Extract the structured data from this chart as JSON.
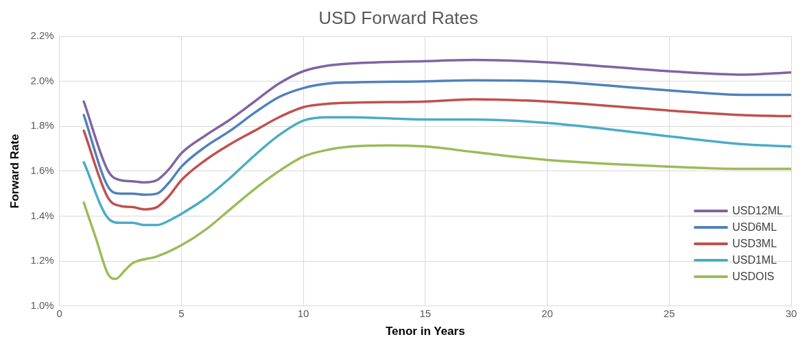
{
  "chart_data": {
    "type": "line",
    "title": "USD Forward Rates",
    "xlabel": "Tenor in Years",
    "ylabel": "Forward Rate",
    "xlim": [
      0,
      30
    ],
    "xticks": [
      0,
      5,
      10,
      15,
      20,
      25,
      30
    ],
    "ylim": [
      1.0,
      2.2
    ],
    "yticks": [
      {
        "value": 1.0,
        "label": "1.0%"
      },
      {
        "value": 1.2,
        "label": "1.2%"
      },
      {
        "value": 1.4,
        "label": "1.4%"
      },
      {
        "value": 1.6,
        "label": "1.6%"
      },
      {
        "value": 1.8,
        "label": "1.8%"
      },
      {
        "value": 2.0,
        "label": "2.0%"
      },
      {
        "value": 2.2,
        "label": "2.2%"
      }
    ],
    "grid": true,
    "legend": "bottom right",
    "marker": "none",
    "line_style": "solid",
    "series": [
      {
        "name": "USD12ML",
        "color": "#8064a2",
        "x": [
          1,
          2,
          2.5,
          3,
          3.5,
          4,
          4.5,
          5,
          6,
          7,
          8,
          9,
          10,
          11,
          12,
          15,
          17,
          20,
          25,
          28,
          30
        ],
        "values": [
          1.91,
          1.6,
          1.56,
          1.555,
          1.55,
          1.56,
          1.61,
          1.68,
          1.76,
          1.83,
          1.91,
          1.99,
          2.045,
          2.07,
          2.08,
          2.09,
          2.095,
          2.085,
          2.045,
          2.03,
          2.04
        ]
      },
      {
        "name": "USD6ML",
        "color": "#4f81bd",
        "x": [
          1,
          2,
          2.5,
          3,
          3.5,
          4,
          4.5,
          5,
          6,
          7,
          8,
          9,
          10,
          11,
          12,
          15,
          17,
          20,
          25,
          28,
          30
        ],
        "values": [
          1.85,
          1.53,
          1.5,
          1.5,
          1.495,
          1.5,
          1.55,
          1.62,
          1.71,
          1.78,
          1.86,
          1.93,
          1.97,
          1.99,
          1.995,
          2.0,
          2.005,
          2.0,
          1.96,
          1.94,
          1.94
        ]
      },
      {
        "name": "USD3ML",
        "color": "#c0504d",
        "x": [
          1,
          2,
          2.5,
          3,
          3.5,
          4,
          4.5,
          5,
          6,
          7,
          8,
          9,
          10,
          11,
          12,
          15,
          17,
          20,
          25,
          28,
          30
        ],
        "values": [
          1.78,
          1.48,
          1.445,
          1.44,
          1.43,
          1.44,
          1.49,
          1.56,
          1.65,
          1.72,
          1.78,
          1.84,
          1.885,
          1.9,
          1.905,
          1.91,
          1.92,
          1.91,
          1.87,
          1.85,
          1.845
        ]
      },
      {
        "name": "USD1ML",
        "color": "#4bacc6",
        "x": [
          1,
          2,
          2.5,
          3,
          3.5,
          4,
          4.5,
          5,
          6,
          7,
          8,
          9,
          10,
          11,
          12,
          15,
          17,
          20,
          25,
          28,
          30
        ],
        "values": [
          1.64,
          1.39,
          1.37,
          1.37,
          1.36,
          1.36,
          1.38,
          1.41,
          1.48,
          1.57,
          1.67,
          1.76,
          1.825,
          1.84,
          1.84,
          1.83,
          1.83,
          1.815,
          1.755,
          1.72,
          1.71
        ]
      },
      {
        "name": "USDOIS",
        "color": "#9bbb59",
        "x": [
          1,
          1.5,
          2,
          2.3,
          2.7,
          3,
          4,
          5,
          6,
          7,
          8,
          9,
          10,
          11,
          12,
          13.5,
          15,
          17,
          20,
          25,
          28,
          30
        ],
        "values": [
          1.46,
          1.3,
          1.14,
          1.12,
          1.16,
          1.19,
          1.22,
          1.27,
          1.34,
          1.43,
          1.52,
          1.6,
          1.665,
          1.695,
          1.71,
          1.715,
          1.71,
          1.685,
          1.65,
          1.62,
          1.61,
          1.61
        ]
      }
    ]
  }
}
